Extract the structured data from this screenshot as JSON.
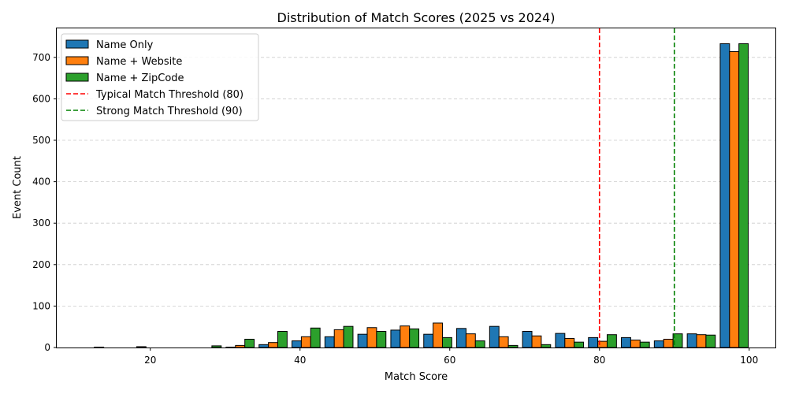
{
  "chart_data": {
    "type": "bar",
    "title": "Distribution of Match Scores (2025 vs 2024)",
    "xlabel": "Match Score",
    "ylabel": "Event Count",
    "xlim": [
      7.5,
      103.5
    ],
    "ylim": [
      0,
      770
    ],
    "xticks": [
      20,
      40,
      60,
      80,
      100
    ],
    "yticks": [
      0,
      100,
      200,
      300,
      400,
      500,
      600,
      700
    ],
    "grid": "y-dashed",
    "legend_position": "top-left",
    "bin_centers": [
      14.4,
      18.8,
      23.2,
      27.6,
      32.0,
      36.4,
      40.8,
      45.2,
      49.6,
      54.0,
      58.4,
      62.8,
      67.2,
      71.6,
      76.0,
      80.4,
      84.8,
      89.2,
      93.6,
      98.0
    ],
    "bar_width": 1.25,
    "series": [
      {
        "name": "Name Only",
        "color": "#1f77b4",
        "values": [
          1,
          0,
          0,
          0,
          1,
          7,
          16,
          26,
          32,
          42,
          32,
          46,
          51,
          39,
          34,
          24,
          24,
          16,
          33,
          733
        ]
      },
      {
        "name": "Name + Website",
        "color": "#ff7f0e",
        "values": [
          0,
          2,
          0,
          0,
          5,
          12,
          26,
          43,
          48,
          52,
          59,
          33,
          26,
          28,
          22,
          15,
          18,
          20,
          31,
          714
        ]
      },
      {
        "name": "Name + ZipCode",
        "color": "#2ca02c",
        "values": [
          0,
          0,
          0,
          4,
          20,
          39,
          47,
          51,
          39,
          45,
          24,
          16,
          5,
          7,
          13,
          31,
          13,
          33,
          30,
          733
        ]
      }
    ],
    "thresholds": [
      {
        "name": "Typical Match Threshold (80)",
        "x": 80,
        "color": "#ff0000"
      },
      {
        "name": "Strong Match Threshold (90)",
        "x": 90,
        "color": "#008000"
      }
    ]
  }
}
